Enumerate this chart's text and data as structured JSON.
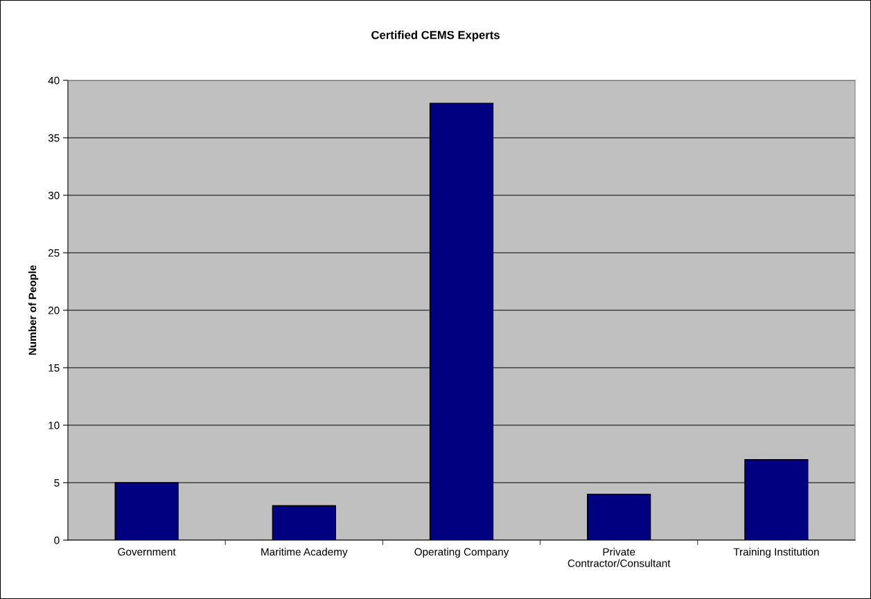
{
  "chart_data": {
    "type": "bar",
    "title": "Certified CEMS Experts",
    "ylabel": "Number of People",
    "categories": [
      "Government",
      "Maritime Academy",
      "Operating Company",
      "Private\nContractor/Consultant",
      "Training Institution"
    ],
    "values": [
      5,
      3,
      38,
      4,
      7
    ],
    "color": "#000080",
    "ylim": [
      0,
      40
    ],
    "yticks": [
      0,
      5,
      10,
      15,
      20,
      25,
      30,
      35,
      40
    ],
    "grid": "y",
    "legend": false
  }
}
